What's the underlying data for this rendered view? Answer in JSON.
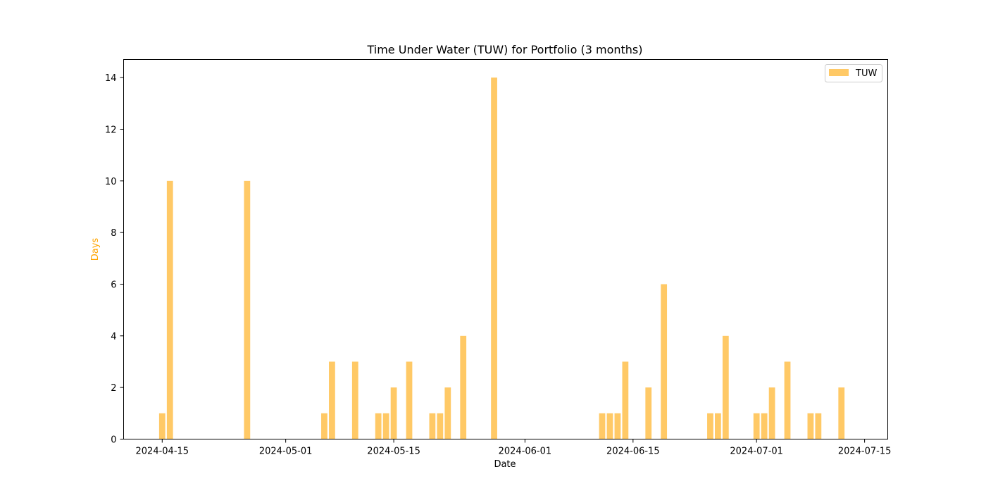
{
  "chart_data": {
    "type": "bar",
    "title": "Time Under Water (TUW) for Portfolio (3 months)",
    "xlabel": "Date",
    "ylabel": "Days",
    "ylabel_color": "#ffa500",
    "bar_color": "#ffc966",
    "legend_position": "top-right",
    "grid": false,
    "ylim": [
      0,
      14.7
    ],
    "xlim": [
      "2024-04-10",
      "2024-07-18"
    ],
    "x_ticks": [
      "2024-04-15",
      "2024-05-01",
      "2024-05-15",
      "2024-06-01",
      "2024-06-15",
      "2024-07-01",
      "2024-07-15"
    ],
    "y_ticks": [
      0,
      2,
      4,
      6,
      8,
      10,
      12,
      14
    ],
    "series": [
      {
        "name": "TUW",
        "points": [
          {
            "x": "2024-04-15",
            "y": 1
          },
          {
            "x": "2024-04-16",
            "y": 10
          },
          {
            "x": "2024-04-26",
            "y": 10
          },
          {
            "x": "2024-05-06",
            "y": 1
          },
          {
            "x": "2024-05-07",
            "y": 3
          },
          {
            "x": "2024-05-10",
            "y": 3
          },
          {
            "x": "2024-05-13",
            "y": 1
          },
          {
            "x": "2024-05-14",
            "y": 1
          },
          {
            "x": "2024-05-15",
            "y": 2
          },
          {
            "x": "2024-05-17",
            "y": 3
          },
          {
            "x": "2024-05-20",
            "y": 1
          },
          {
            "x": "2024-05-21",
            "y": 1
          },
          {
            "x": "2024-05-22",
            "y": 2
          },
          {
            "x": "2024-05-24",
            "y": 4
          },
          {
            "x": "2024-05-28",
            "y": 14
          },
          {
            "x": "2024-06-11",
            "y": 1
          },
          {
            "x": "2024-06-12",
            "y": 1
          },
          {
            "x": "2024-06-13",
            "y": 1
          },
          {
            "x": "2024-06-14",
            "y": 3
          },
          {
            "x": "2024-06-17",
            "y": 2
          },
          {
            "x": "2024-06-19",
            "y": 6
          },
          {
            "x": "2024-06-25",
            "y": 1
          },
          {
            "x": "2024-06-26",
            "y": 1
          },
          {
            "x": "2024-06-27",
            "y": 4
          },
          {
            "x": "2024-07-01",
            "y": 1
          },
          {
            "x": "2024-07-02",
            "y": 1
          },
          {
            "x": "2024-07-03",
            "y": 2
          },
          {
            "x": "2024-07-05",
            "y": 3
          },
          {
            "x": "2024-07-08",
            "y": 1
          },
          {
            "x": "2024-07-09",
            "y": 1
          },
          {
            "x": "2024-07-12",
            "y": 2
          }
        ]
      }
    ]
  }
}
